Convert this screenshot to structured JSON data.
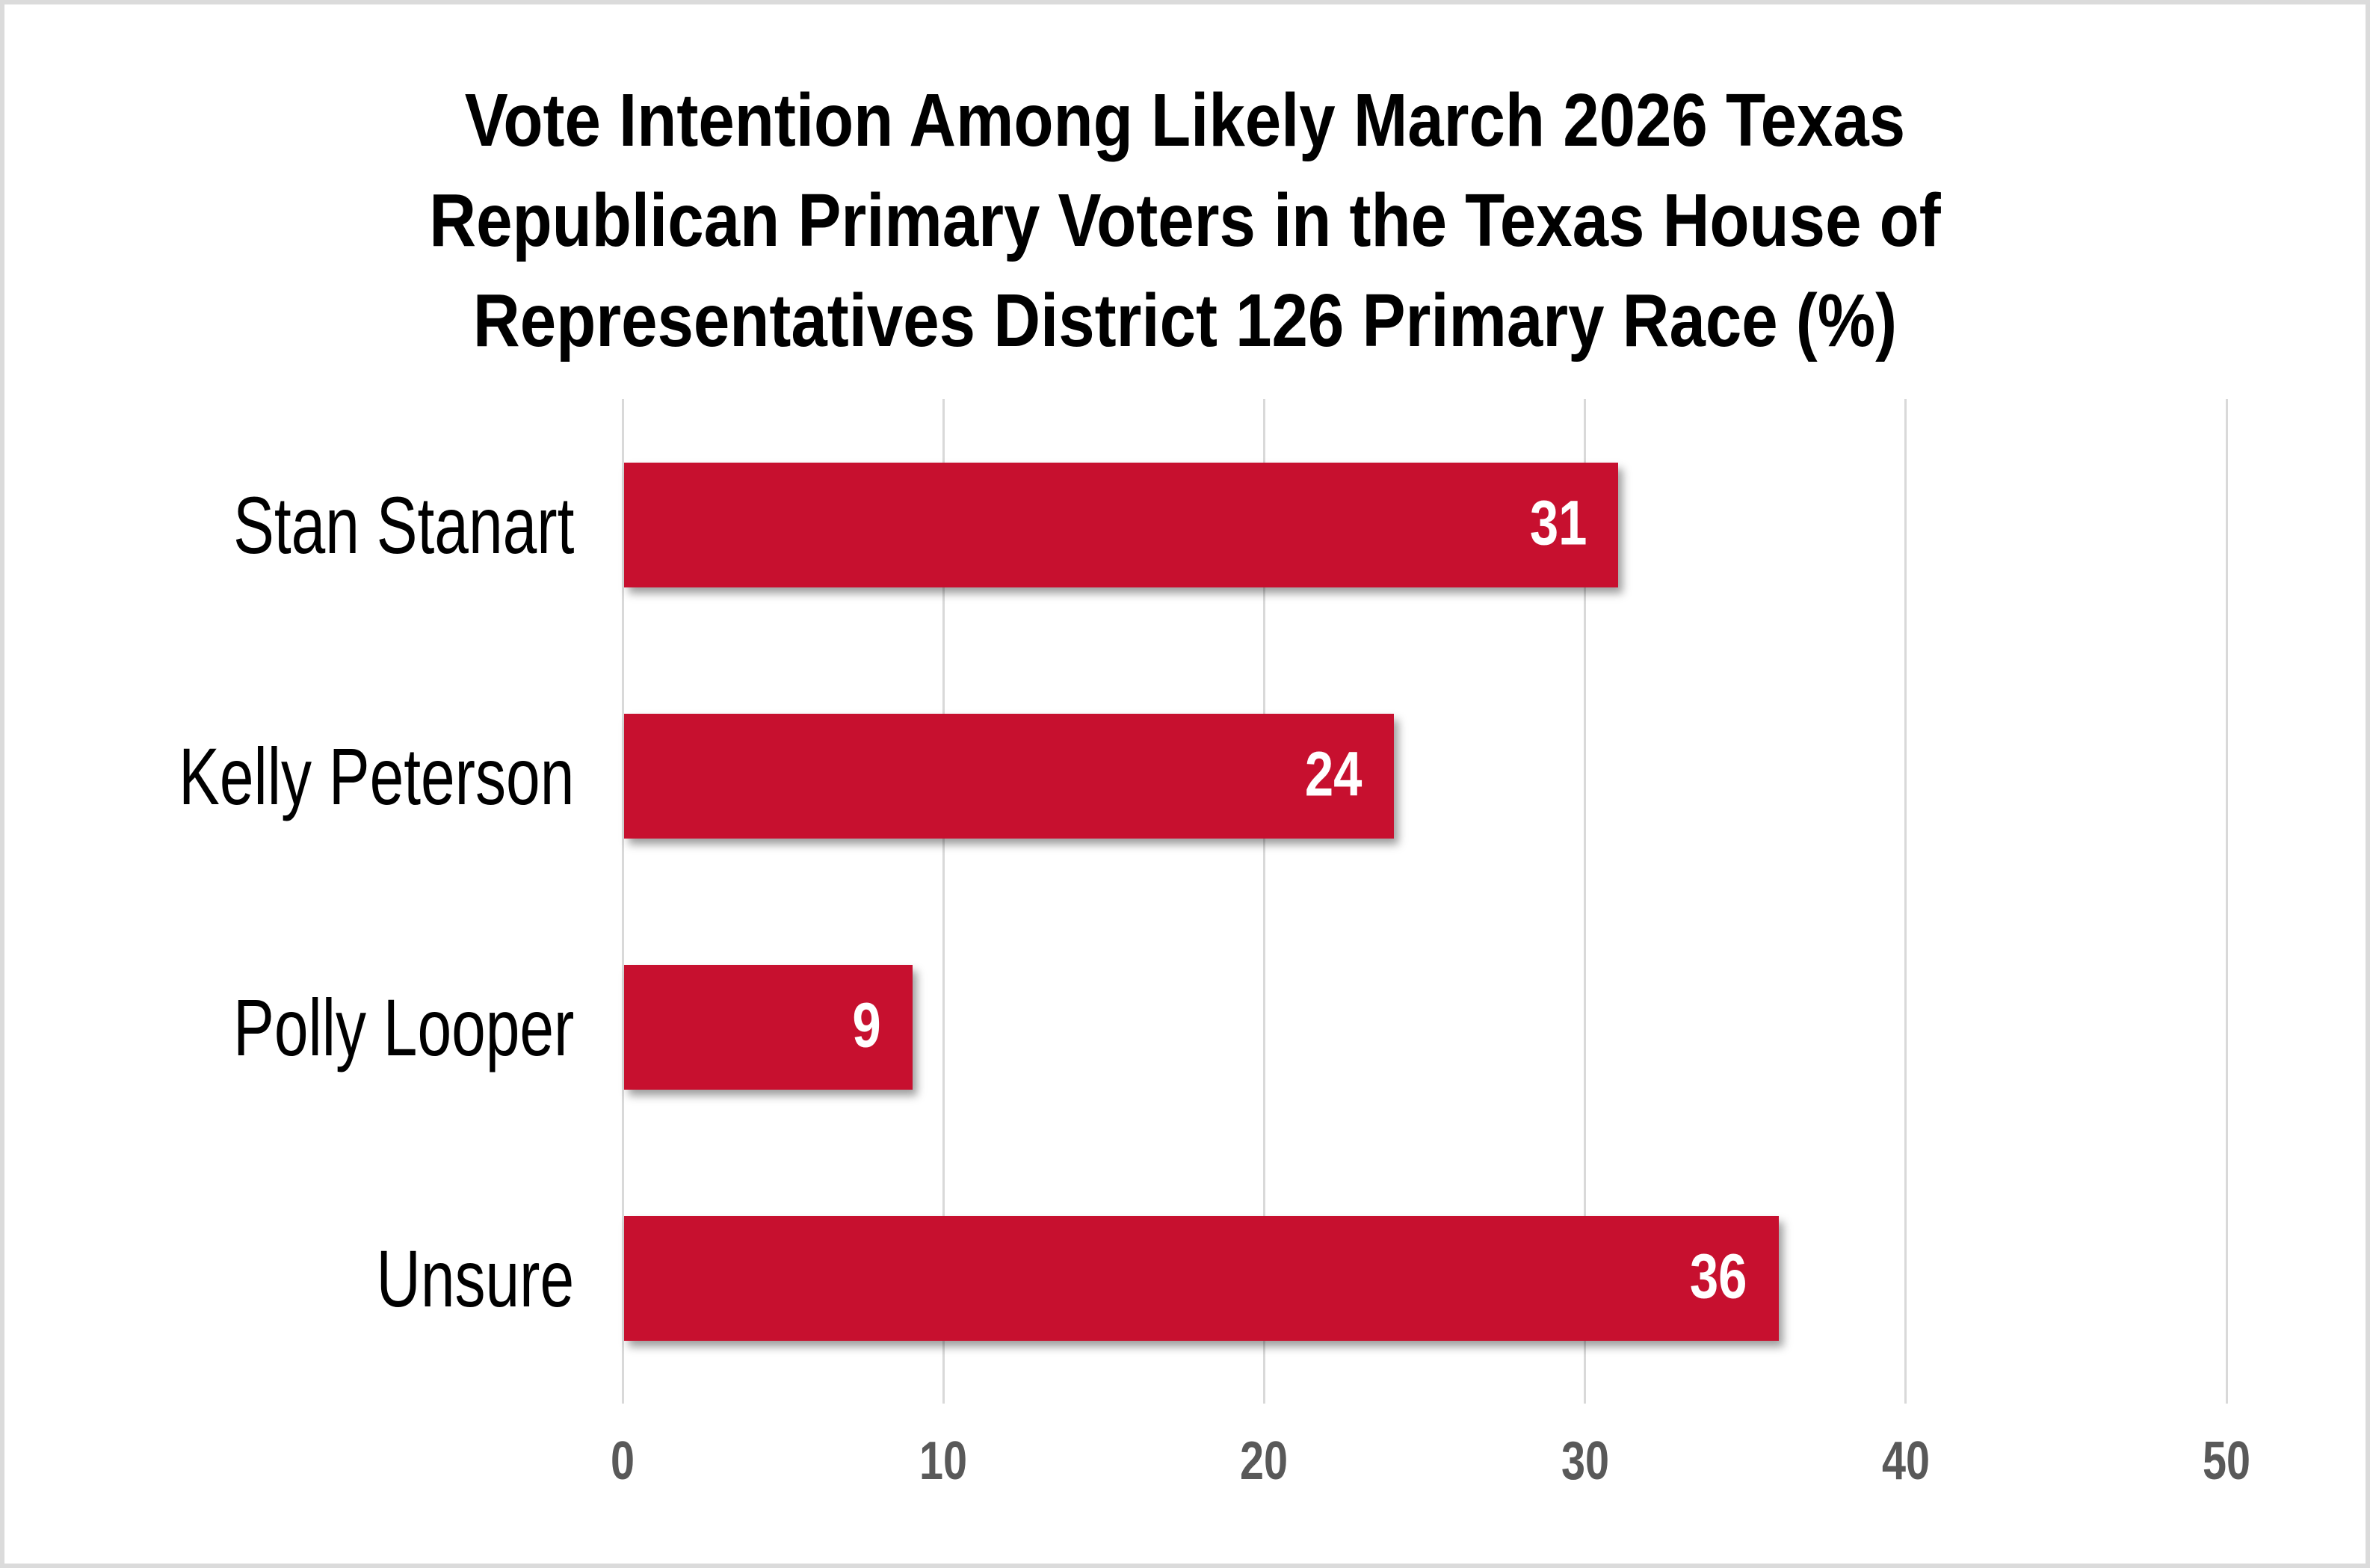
{
  "chart_data": {
    "type": "bar",
    "orientation": "horizontal",
    "title": "Vote Intention Among Likely March 2026 Texas Republican Primary Voters in the Texas House of Representatives District 126 Primary Race (%)",
    "title_lines": [
      "Vote Intention Among Likely March 2026 Texas",
      "Republican Primary Voters in the Texas House of",
      "Representatives District 126 Primary Race (%)"
    ],
    "categories": [
      "Stan Stanart",
      "Kelly Peterson",
      "Polly Looper",
      "Unsure"
    ],
    "values": [
      31,
      24,
      9,
      36
    ],
    "value_labels": [
      "31",
      "24",
      "9",
      "36"
    ],
    "xlabel": "",
    "ylabel": "",
    "xlim": [
      0,
      50
    ],
    "xticks": [
      0,
      10,
      20,
      30,
      40,
      50
    ],
    "xtick_labels": [
      "0",
      "10",
      "20",
      "30",
      "40",
      "50"
    ],
    "grid": true,
    "legend": false,
    "colors": {
      "bar": "#c7102f",
      "value_label": "#ffffff",
      "category_label": "#000000",
      "title": "#000000",
      "tick_label": "#595959",
      "gridline": "#d9d9d9",
      "background": "#ffffff",
      "border": "#dbdbdb"
    }
  }
}
